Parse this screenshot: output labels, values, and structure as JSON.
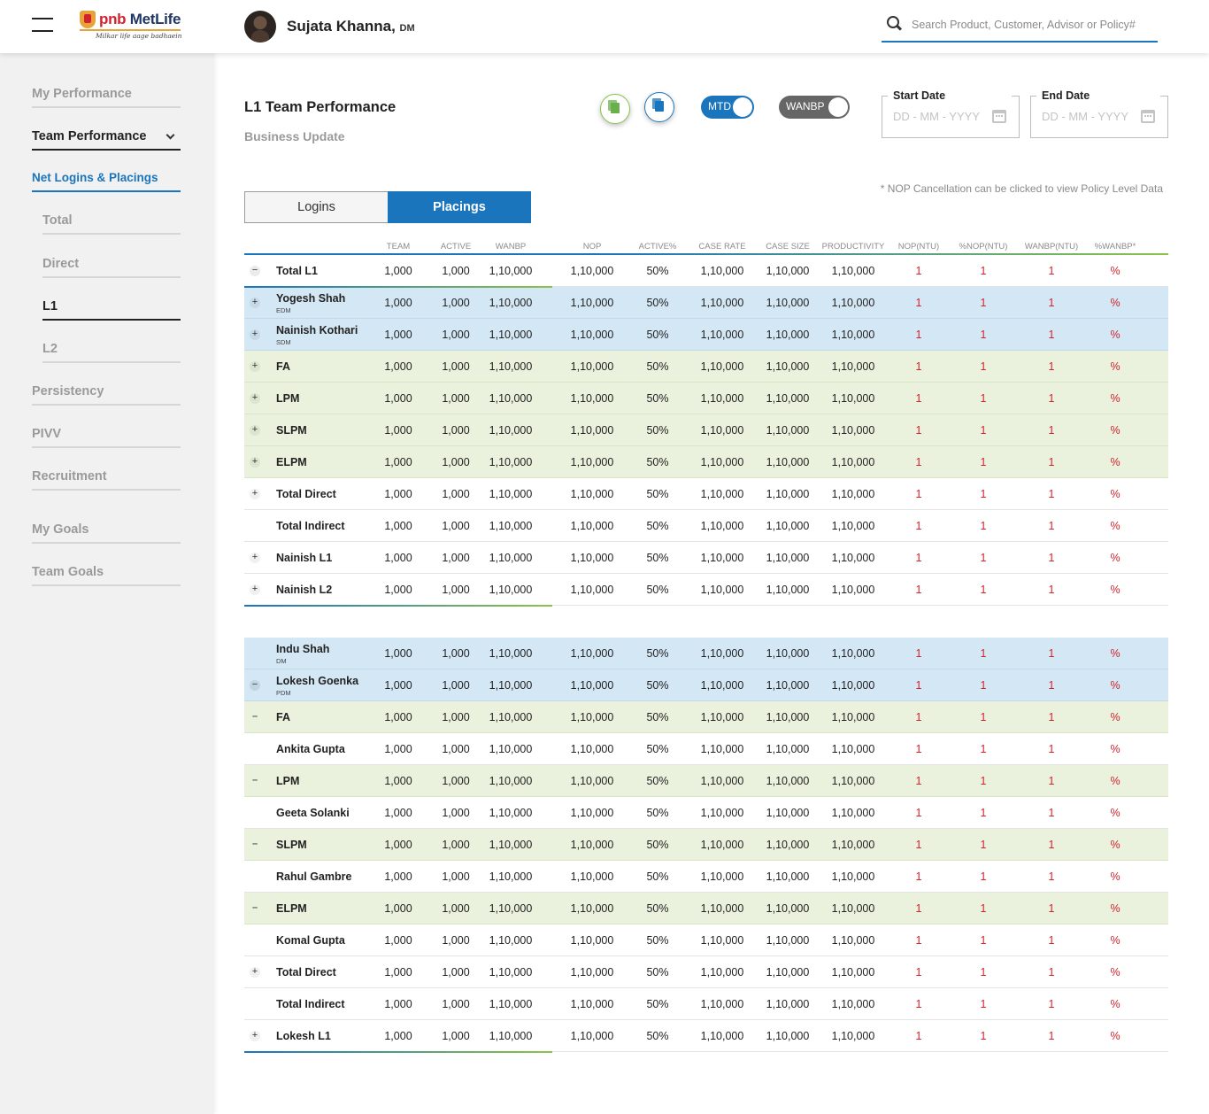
{
  "header": {
    "logo": {
      "brand_a": "pnb",
      "brand_b": "MetLife",
      "tagline": "Milkar life aage badhaein"
    },
    "user": {
      "name": "Sujata Khanna,",
      "role": "DM"
    },
    "search": {
      "placeholder": "Search Product, Customer, Advisor or Policy#"
    }
  },
  "sidebar": {
    "items": [
      {
        "label": "My Performance"
      },
      {
        "label": "Team Performance"
      },
      {
        "label": "Net Logins & Placings"
      },
      {
        "label": "Total"
      },
      {
        "label": "Direct"
      },
      {
        "label": "L1"
      },
      {
        "label": "L2"
      },
      {
        "label": "Persistency"
      },
      {
        "label": "PIVV"
      },
      {
        "label": "Recruitment"
      },
      {
        "label": "My Goals"
      },
      {
        "label": "Team Goals"
      }
    ]
  },
  "main": {
    "title": "L1 Team Performance",
    "subtitle": "Business Update",
    "toggles": {
      "mtd": "MTD",
      "wanbp": "WANBP"
    },
    "start_date": {
      "label": "Start Date",
      "placeholder": "DD - MM - YYYY"
    },
    "end_date": {
      "label": "End Date",
      "placeholder": "DD - MM - YYYY"
    },
    "tabs": {
      "logins": "Logins",
      "placings": "Placings"
    },
    "note": "* NOP Cancellation can be clicked to view Policy Level Data"
  },
  "table": {
    "columns": [
      "TEAM",
      "ACTIVE",
      "WANBP",
      "NOP",
      "ACTIVE%",
      "CASE RATE",
      "CASE SIZE",
      "PRODUCTIVITY",
      "NOP(NTU)",
      "%NOP(NTU)",
      "WANBP(NTU)",
      "%WANBP*"
    ],
    "values": [
      "1,000",
      "1,000",
      "1,10,000",
      "1,10,000",
      "50%",
      "1,10,000",
      "1,10,000",
      "1,10,000",
      "1",
      "1",
      "1",
      "%"
    ],
    "block1": [
      {
        "name": "Total L1",
        "sub": "",
        "toggle": "minus",
        "bg": "white"
      },
      {
        "name": "Yogesh Shah",
        "sub": "EDM",
        "toggle": "plus",
        "bg": "blue"
      },
      {
        "name": "Nainish Kothari",
        "sub": "SDM",
        "toggle": "plus",
        "bg": "blue"
      },
      {
        "name": "FA",
        "sub": "",
        "toggle": "plus",
        "bg": "green"
      },
      {
        "name": "LPM",
        "sub": "",
        "toggle": "plus",
        "bg": "green"
      },
      {
        "name": "SLPM",
        "sub": "",
        "toggle": "plus",
        "bg": "green"
      },
      {
        "name": "ELPM",
        "sub": "",
        "toggle": "plus",
        "bg": "green"
      },
      {
        "name": "Total Direct",
        "sub": "",
        "toggle": "plus",
        "bg": "white"
      },
      {
        "name": "Total Indirect",
        "sub": "",
        "toggle": "",
        "bg": "white"
      },
      {
        "name": "Nainish L1",
        "sub": "",
        "toggle": "plus",
        "bg": "white"
      },
      {
        "name": "Nainish L2",
        "sub": "",
        "toggle": "plus",
        "bg": "white"
      }
    ],
    "block2": [
      {
        "name": "Indu Shah",
        "sub": "DM",
        "toggle": "",
        "bg": "blue"
      },
      {
        "name": "Lokesh Goenka",
        "sub": "PDM",
        "toggle": "minus",
        "bg": "blue"
      },
      {
        "name": "FA",
        "sub": "",
        "toggle": "dash",
        "bg": "green"
      },
      {
        "name": "Ankita Gupta",
        "sub": "",
        "toggle": "",
        "bg": "white"
      },
      {
        "name": "LPM",
        "sub": "",
        "toggle": "dash",
        "bg": "green"
      },
      {
        "name": "Geeta Solanki",
        "sub": "",
        "toggle": "",
        "bg": "white"
      },
      {
        "name": "SLPM",
        "sub": "",
        "toggle": "dash",
        "bg": "green"
      },
      {
        "name": "Rahul Gambre",
        "sub": "",
        "toggle": "",
        "bg": "white"
      },
      {
        "name": "ELPM",
        "sub": "",
        "toggle": "dash",
        "bg": "green"
      },
      {
        "name": "Komal Gupta",
        "sub": "",
        "toggle": "",
        "bg": "white"
      },
      {
        "name": "Total Direct",
        "sub": "",
        "toggle": "plus",
        "bg": "white"
      },
      {
        "name": "Total Indirect",
        "sub": "",
        "toggle": "",
        "bg": "white"
      },
      {
        "name": "Lokesh L1",
        "sub": "",
        "toggle": "plus",
        "bg": "white"
      }
    ]
  }
}
